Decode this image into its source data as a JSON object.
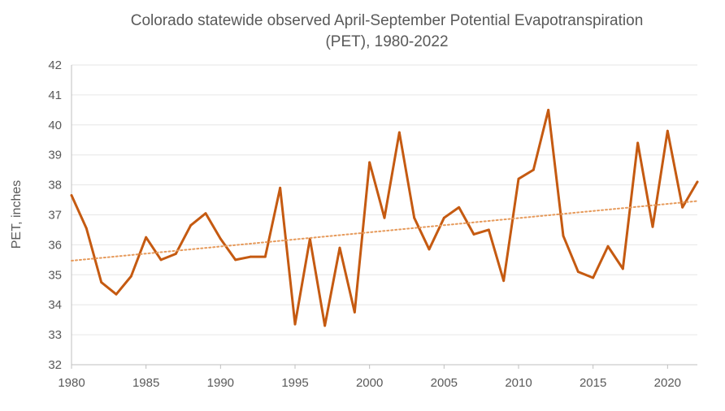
{
  "chart_data": {
    "type": "line",
    "title_lines": [
      "Colorado statewide observed April-September Potential Evapotranspiration",
      "(PET), 1980-2022"
    ],
    "xlabel": "",
    "ylabel": "PET, inches",
    "xlim": [
      1980,
      2022
    ],
    "ylim": [
      32,
      42
    ],
    "xticks": [
      1980,
      1985,
      1990,
      1995,
      2000,
      2005,
      2010,
      2015,
      2020
    ],
    "yticks": [
      32,
      33,
      34,
      35,
      36,
      37,
      38,
      39,
      40,
      41,
      42
    ],
    "grid": true,
    "legend": "none",
    "series": [
      {
        "color": "#c55a11",
        "style": "solid",
        "x": [
          1980,
          1981,
          1982,
          1983,
          1984,
          1985,
          1986,
          1987,
          1988,
          1989,
          1990,
          1991,
          1992,
          1993,
          1994,
          1995,
          1996,
          1997,
          1998,
          1999,
          2000,
          2001,
          2002,
          2003,
          2004,
          2005,
          2006,
          2007,
          2008,
          2009,
          2010,
          2011,
          2012,
          2013,
          2014,
          2015,
          2016,
          2017,
          2018,
          2019,
          2020,
          2021,
          2022
        ],
        "values": [
          37.65,
          36.55,
          34.75,
          34.35,
          34.95,
          36.25,
          35.5,
          35.7,
          36.65,
          37.05,
          36.2,
          35.5,
          35.6,
          35.6,
          37.9,
          33.35,
          36.2,
          33.3,
          35.9,
          33.75,
          38.75,
          36.9,
          39.75,
          36.9,
          35.85,
          36.9,
          37.25,
          36.35,
          36.5,
          34.8,
          38.2,
          38.5,
          40.5,
          36.3,
          35.1,
          34.9,
          35.95,
          35.2,
          39.4,
          36.6,
          39.8,
          37.25,
          38.1
        ]
      },
      {
        "type": "trendline",
        "color": "#e69a5b",
        "style": "dotted",
        "x": [
          1980,
          2022
        ],
        "values": [
          35.47,
          37.46
        ]
      }
    ]
  }
}
